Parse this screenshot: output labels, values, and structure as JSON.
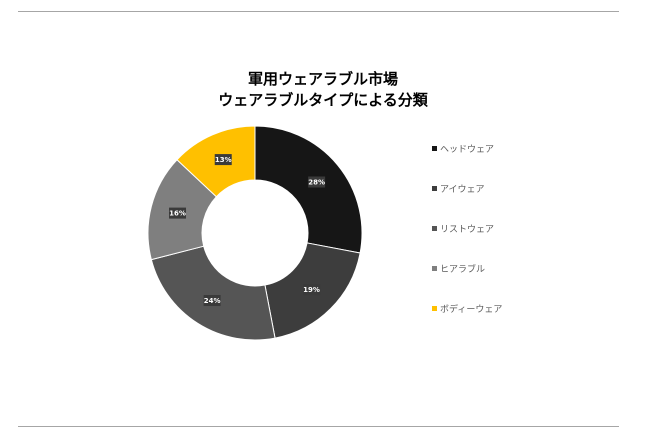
{
  "chart_data": {
    "type": "pie",
    "donut": true,
    "title_lines": [
      "軍用ウェアラブル市場",
      "ウェアラブルタイプによる分類"
    ],
    "categories": [
      "ヘッドウェア",
      "アイウェア",
      "リストウェア",
      "ヒアラブル",
      "ボディーウェア"
    ],
    "values": [
      28,
      19,
      24,
      16,
      13
    ],
    "labels": [
      "28%",
      "19%",
      "24%",
      "16%",
      "13%"
    ],
    "colors": [
      "#161616",
      "#3d3d3d",
      "#555555",
      "#7f7f7f",
      "#ffc000"
    ],
    "legend_position": "right"
  }
}
